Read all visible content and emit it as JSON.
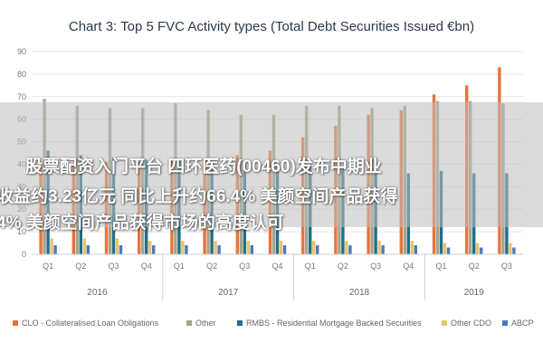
{
  "chart_data": {
    "type": "bar",
    "title": "Chart 3: Top 5 FVC Activity types (Total Debt Securities Issued €bn)",
    "ylim": [
      0,
      90
    ],
    "yticks": [
      0,
      10,
      20,
      30,
      40,
      50,
      60,
      70,
      80,
      90
    ],
    "categories": [
      "Q1",
      "Q2",
      "Q3",
      "Q4",
      "Q1",
      "Q2",
      "Q3",
      "Q4",
      "Q1",
      "Q2",
      "Q3",
      "Q4",
      "Q1",
      "Q2",
      "Q3"
    ],
    "years": [
      {
        "label": "2016",
        "quarters": 4
      },
      {
        "label": "2017",
        "quarters": 4
      },
      {
        "label": "2018",
        "quarters": 4
      },
      {
        "label": "2019",
        "quarters": 3
      }
    ],
    "series": [
      {
        "name": "CLO - Collateralised Loan Obligations",
        "color": "#e8743b",
        "values": [
          40,
          40,
          41,
          41,
          42,
          42,
          44,
          46,
          52,
          57,
          62,
          64,
          71,
          75,
          83
        ]
      },
      {
        "name": "Other",
        "color": "#a5a58d",
        "values": [
          69,
          66,
          65,
          65,
          67,
          64,
          62,
          62,
          66,
          66,
          65,
          66,
          68,
          68,
          67
        ]
      },
      {
        "name": "RMBS - Residential Mortgage Backed Securities",
        "color": "#1f6f8b",
        "values": [
          46,
          44,
          43,
          42,
          42,
          41,
          40,
          40,
          39,
          38,
          37,
          36,
          37,
          36,
          36
        ]
      },
      {
        "name": "Other CDO",
        "color": "#e9c46a",
        "values": [
          7,
          7,
          7,
          6,
          6,
          6,
          6,
          6,
          6,
          6,
          6,
          6,
          5,
          5,
          5
        ]
      },
      {
        "name": "ABCP",
        "color": "#4a78c2",
        "values": [
          4,
          4,
          4,
          4,
          4,
          4,
          4,
          4,
          4,
          4,
          4,
          4,
          3,
          3,
          3
        ]
      }
    ]
  },
  "overlay": {
    "line1": "股票配资入门平台 四环医药(00460)发布中期业",
    "line2": "收益约3.23亿元 同比上升约66.4% 美颜空间产品获得",
    "line3": "4% 美颜空间产品获得市场的高度认可"
  }
}
